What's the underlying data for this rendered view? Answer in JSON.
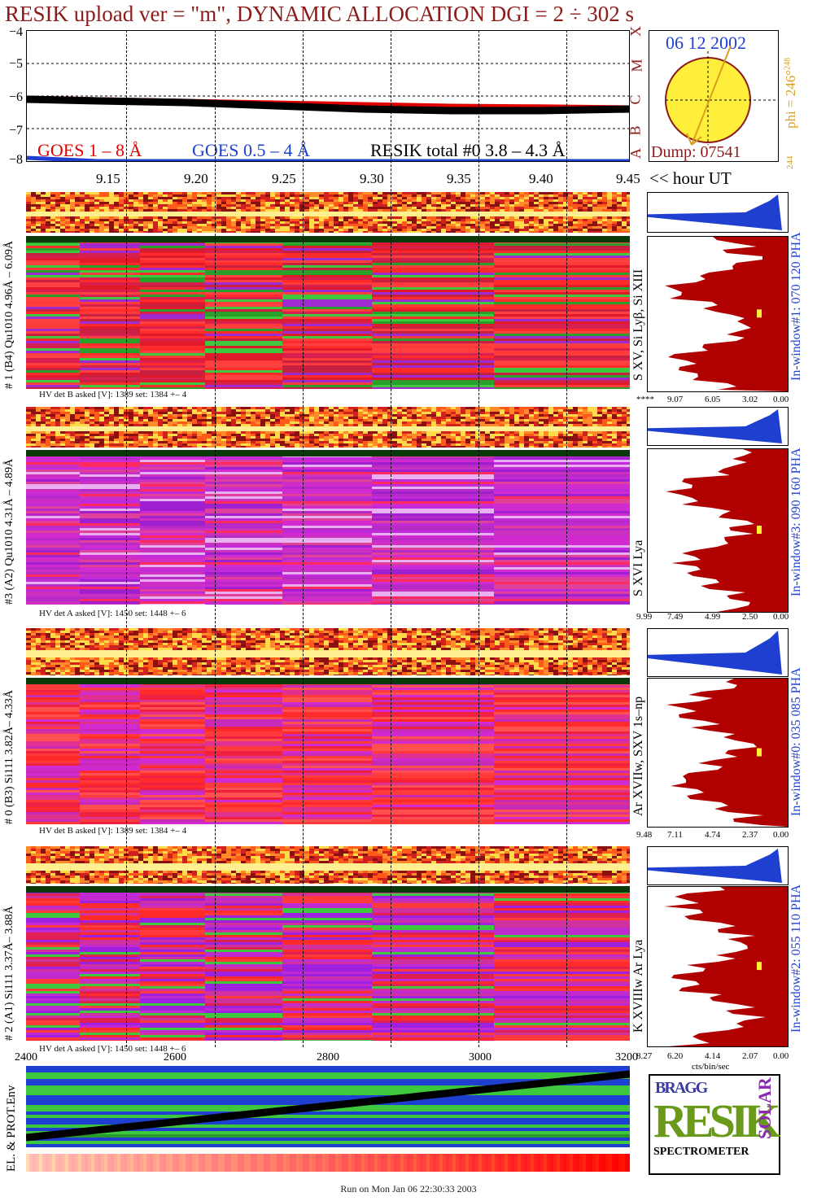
{
  "title": "RESIK upload ver = \"m\", DYNAMIC ALLOCATION  DGI =   2 ÷ 302 s",
  "goes": {
    "y_ticks": [
      "−4",
      "−5",
      "−6",
      "−7",
      "−8"
    ],
    "legend_red": "GOES 1 – 8 Å",
    "legend_blue": "GOES 0.5 – 4 Å",
    "legend_black": "RESIK total #0  3.8 – 4.3 Å",
    "class_letters": [
      "X",
      "M",
      "C",
      "B",
      "A"
    ],
    "colors": {
      "red": "#e00000",
      "blue": "#1f3fd0",
      "black": "#000000"
    }
  },
  "time_axis": {
    "ticks": [
      "9.15",
      "9.20",
      "9.25",
      "9.30",
      "9.35",
      "9.40",
      "9.45"
    ],
    "unit_label": "<< hour UT"
  },
  "sun": {
    "date": "06 12 2002",
    "dump": "Dump: 07541",
    "phi": "phi = 246°",
    "phi_sup": "248",
    "phi_low": "244"
  },
  "panels": [
    {
      "channel_label": "# 1 (B4) Qu1010 4.96Å – 6.09Å",
      "lines_label": "S XV, Si Lyβ, Si XIII",
      "window_label": "In-window#1:  070 120 PHA",
      "hv_text": "HV det B asked [V]:  1389 set:  1384 +–    4",
      "hist_ticks": [
        "****",
        "9.07",
        "6.05",
        "3.02",
        "0.00"
      ],
      "palette": "red-green"
    },
    {
      "channel_label": "#3 (A2) Qu1010  4.31Å – 4.89Å",
      "lines_label": "S XVI Lya",
      "window_label": "In-window#3:  090 160 PHA",
      "hv_text": "HV det A asked [V]:  1450 set:  1448 +–    6",
      "hist_ticks": [
        "9.99",
        "7.49",
        "4.99",
        "2.50",
        "0.00"
      ],
      "palette": "magenta"
    },
    {
      "channel_label": "# 0 (B3) Si111  3.82Å– 4.33Å",
      "lines_label": "Ar XVIIw, SXV 1s–np",
      "window_label": "In-window#0:  035 085 PHA",
      "hv_text": "HV det B asked [V]:  1389 set:  1384 +–    4",
      "hist_ticks": [
        "9.48",
        "7.11",
        "4.74",
        "2.37",
        "0.00"
      ],
      "palette": "red-magenta"
    },
    {
      "channel_label": "# 2 (A1) Si111  3.37Å– 3.88Å",
      "lines_label": "K XVIIIw  Ar Lya",
      "window_label": "In-window#2:  055 110 PHA",
      "hv_text": "HV det A asked [V]:  1450 set:  1448 +–    6",
      "hist_ticks": [
        "8.27",
        "6.20",
        "4.14",
        "2.07",
        "0.00"
      ],
      "palette": "red-magenta2"
    }
  ],
  "hist_unit": "cts/bin/sec",
  "env": {
    "x_ticks": [
      "2400",
      "2600",
      "2800",
      "3000",
      "3200"
    ],
    "label": "EL. & PROT.Env"
  },
  "logo": {
    "bragg": "BRAGG",
    "resik": "RESIK",
    "solar": "SOLAR",
    "spectrometer": "SPECTROMETER"
  },
  "footer": "Run on Mon Jan 06 22:30:33 2003",
  "chart_data": {
    "type": "line",
    "title": "RESIK upload ver = \"m\", DYNAMIC ALLOCATION  DGI =   2 ÷ 302 s",
    "xlabel": "<< hour UT",
    "ylabel": "",
    "xlim": [
      9.11,
      9.45
    ],
    "ylim": [
      -8,
      -4
    ],
    "x": [
      9.11,
      9.15,
      9.2,
      9.25,
      9.3,
      9.35,
      9.4,
      9.45
    ],
    "series": [
      {
        "name": "GOES 1 – 8 Å",
        "values": [
          -6.05,
          -6.1,
          -6.15,
          -6.2,
          -6.25,
          -6.3,
          -6.32,
          -6.35
        ]
      },
      {
        "name": "RESIK total #0  3.8 – 4.3 Å",
        "values": [
          -6.1,
          -6.15,
          -6.2,
          -6.3,
          -6.4,
          -6.45,
          -6.45,
          -6.4
        ]
      },
      {
        "name": "GOES 0.5 – 4 Å",
        "values": [
          -7.9,
          -8.0,
          -8.0,
          -8.0,
          -8.0,
          -8.0,
          -8.0,
          -8.0
        ]
      }
    ]
  }
}
